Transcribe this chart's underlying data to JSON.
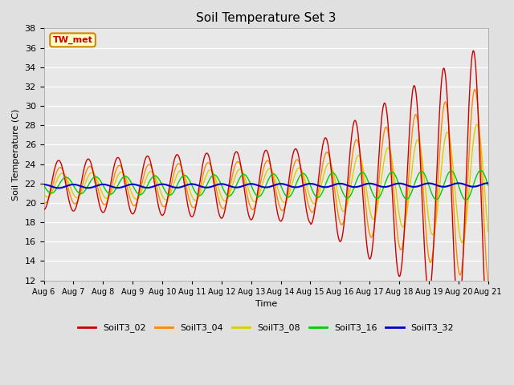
{
  "title": "Soil Temperature Set 3",
  "xlabel": "Time",
  "ylabel": "Soil Temperature (C)",
  "ylim": [
    12,
    38
  ],
  "yticks": [
    12,
    14,
    16,
    18,
    20,
    22,
    24,
    26,
    28,
    30,
    32,
    34,
    36,
    38
  ],
  "background_color": "#e0e0e0",
  "plot_bg_color": "#e8e8e8",
  "series_colors": {
    "SoilT3_02": "#cc0000",
    "SoilT3_04": "#ff8800",
    "SoilT3_08": "#ddcc00",
    "SoilT3_16": "#00cc00",
    "SoilT3_32": "#0000cc"
  },
  "annotation_text": "TW_met",
  "annotation_bg": "#ffffcc",
  "annotation_border": "#cc8800",
  "annotation_text_color": "#cc0000",
  "xtick_labels": [
    "Aug 6",
    "Aug 7",
    "Aug 8",
    "Aug 9",
    "Aug 10",
    "Aug 11",
    "Aug 12",
    "Aug 13",
    "Aug 14",
    "Aug 15",
    "Aug 16",
    "Aug 17",
    "Aug 18",
    "Aug 19",
    "Aug 20",
    "Aug 21"
  ],
  "num_points": 720
}
